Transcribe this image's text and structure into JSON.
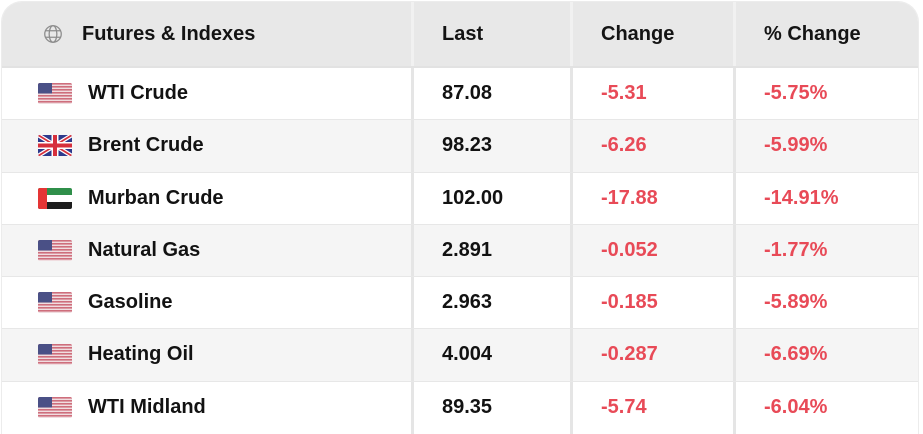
{
  "table": {
    "header": {
      "name_label": "Futures & Indexes",
      "last_label": "Last",
      "change_label": "Change",
      "pct_change_label": "% Change",
      "icon": "globe-icon"
    },
    "rows": [
      {
        "name": "WTI Crude",
        "flag": "us",
        "flag_icon": "us-flag-icon",
        "last": "87.08",
        "change": "-5.31",
        "pct_change": "-5.75%"
      },
      {
        "name": "Brent Crude",
        "flag": "gb",
        "flag_icon": "gb-flag-icon",
        "last": "98.23",
        "change": "-6.26",
        "pct_change": "-5.99%"
      },
      {
        "name": "Murban Crude",
        "flag": "ae",
        "flag_icon": "ae-flag-icon",
        "last": "102.00",
        "change": "-17.88",
        "pct_change": "-14.91%"
      },
      {
        "name": "Natural Gas",
        "flag": "us",
        "flag_icon": "us-flag-icon",
        "last": "2.891",
        "change": "-0.052",
        "pct_change": "-1.77%"
      },
      {
        "name": "Gasoline",
        "flag": "us",
        "flag_icon": "us-flag-icon",
        "last": "2.963",
        "change": "-0.185",
        "pct_change": "-5.89%"
      },
      {
        "name": "Heating Oil",
        "flag": "us",
        "flag_icon": "us-flag-icon",
        "last": "4.004",
        "change": "-0.287",
        "pct_change": "-6.69%"
      },
      {
        "name": "WTI Midland",
        "flag": "us",
        "flag_icon": "us-flag-icon",
        "last": "89.35",
        "change": "-5.74",
        "pct_change": "-6.04%"
      }
    ],
    "colors": {
      "negative": "#e84a57",
      "header_bg": "#e8e8e8",
      "row_alt_bg": "#f5f5f5",
      "text": "#121212"
    }
  }
}
